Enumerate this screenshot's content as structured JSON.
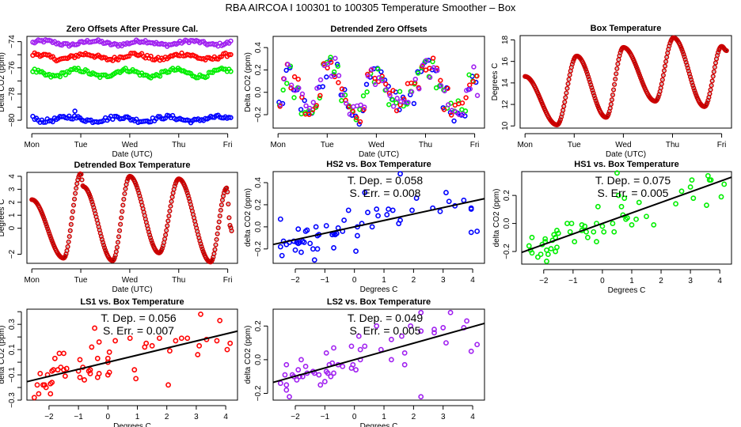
{
  "figure_title": "RBA   AIRCOA I   100301 to 100305   Temperature Smoother – Box",
  "colors": {
    "HS2": "#0000ff",
    "HS1": "#00ee00",
    "LS1": "#ff0000",
    "LS2": "#a020f0",
    "temp_fill": "#cc0000",
    "temp_edge": "#000000",
    "fit": "#000000"
  },
  "chart_data": [
    {
      "id": "zero-offsets",
      "type": "scatter",
      "title": "Zero Offsets After Pressure Cal.",
      "xlabel": "Date (UTC)",
      "ylabel": "Delta CO2 (ppm)",
      "xticks": [
        "Mon",
        "Tue",
        "Wed",
        "Thu",
        "Fri"
      ],
      "xlim": [
        -0.1,
        4.2
      ],
      "ylim": [
        -80.6,
        -73.6
      ],
      "yticks": [
        -80,
        -78,
        -76,
        -74
      ],
      "yticks_minor": [
        -79,
        -77,
        -75
      ],
      "series": [
        {
          "name": "LS2",
          "color": "#a020f0",
          "base": -74.1,
          "amp": 0.15,
          "noise": 0.12
        },
        {
          "name": "LS1",
          "color": "#ff0000",
          "base": -75.15,
          "amp": 0.2,
          "noise": 0.15
        },
        {
          "name": "HS1",
          "color": "#00ee00",
          "base": -76.4,
          "amp": 0.25,
          "noise": 0.15
        },
        {
          "name": "HS2",
          "color": "#0000ff",
          "base": -79.9,
          "amp": 0.15,
          "noise": 0.15
        }
      ]
    },
    {
      "id": "detrended-zero-offsets",
      "type": "scatter",
      "title": "Detrended Zero Offsets",
      "xlabel": "Date (UTC)",
      "ylabel": "Delta CO2 (ppm)",
      "xticks": [
        "Mon",
        "Tue",
        "Wed",
        "Thu",
        "Fri"
      ],
      "xlim": [
        -0.1,
        4.2
      ],
      "ylim": [
        -0.32,
        0.5
      ],
      "yticks": [
        -0.2,
        0.0,
        0.2,
        0.4
      ],
      "series": [
        {
          "name": "HS2",
          "color": "#0000ff"
        },
        {
          "name": "HS1",
          "color": "#00ee00"
        },
        {
          "name": "LS1",
          "color": "#ff0000"
        },
        {
          "name": "LS2",
          "color": "#a020f0"
        }
      ]
    },
    {
      "id": "box-temperature",
      "type": "scatter",
      "title": "Box Temperature",
      "xlabel": "Date (UTC)",
      "ylabel": "Degrees C",
      "xticks": [
        "Mon",
        "Tue",
        "Wed",
        "Thu",
        "Fri"
      ],
      "xlim": [
        -0.1,
        4.2
      ],
      "ylim": [
        9.8,
        18.4
      ],
      "yticks": [
        10,
        12,
        14,
        16,
        18
      ],
      "keypoints": [
        [
          0.0,
          14.6
        ],
        [
          0.65,
          10.1
        ],
        [
          1.05,
          16.5
        ],
        [
          1.65,
          10.8
        ],
        [
          2.0,
          17.3
        ],
        [
          2.65,
          12.3
        ],
        [
          3.02,
          18.2
        ],
        [
          3.65,
          11.8
        ],
        [
          4.0,
          17.4
        ],
        [
          4.1,
          17.0
        ]
      ]
    },
    {
      "id": "detrended-box-temperature",
      "type": "scatter",
      "title": "Detrended Box Temperature",
      "xlabel": "Date (UTC)",
      "ylabel": "Degrees C",
      "xticks": [
        "Mon",
        "Tue",
        "Wed",
        "Thu",
        "Fri"
      ],
      "xlim": [
        -0.1,
        4.2
      ],
      "ylim": [
        -2.7,
        4.3
      ],
      "yticks": [
        -2,
        0,
        1,
        2,
        3,
        4
      ],
      "ytick_labels": [
        "-2",
        "0",
        "1",
        "2",
        "3",
        "4"
      ],
      "keypoints": [
        [
          0.0,
          2.2
        ],
        [
          0.65,
          -2.3
        ],
        [
          1.0,
          4.2
        ],
        [
          1.05,
          3.2
        ],
        [
          1.65,
          -2.5
        ],
        [
          2.0,
          4.0
        ],
        [
          2.6,
          -1.9
        ],
        [
          3.0,
          3.8
        ],
        [
          3.65,
          -2.6
        ],
        [
          3.98,
          3.1
        ],
        [
          4.05,
          0.2
        ],
        [
          4.08,
          -0.2
        ]
      ]
    },
    {
      "id": "hs2-vs-box",
      "type": "scatter",
      "title": "HS2 vs. Box Temperature",
      "xlabel": "Degrees C",
      "ylabel": "delta CO2 (ppm)",
      "color": "#0000ff",
      "xlim": [
        -2.75,
        4.4
      ],
      "ylim": [
        -0.33,
        0.5
      ],
      "xticks": [
        -2,
        -1,
        0,
        1,
        2,
        3,
        4
      ],
      "yticks": [
        -0.2,
        0.0,
        0.2,
        0.4
      ],
      "fit": {
        "slope": 0.058,
        "intercept": 0.0
      },
      "annotation": [
        "T. Dep. =  0.058",
        "S. Err. =  0.008"
      ],
      "points": [
        [
          -2.5,
          0.07
        ],
        [
          -2.5,
          -0.18
        ],
        [
          -2.45,
          -0.26
        ],
        [
          -2.4,
          -0.13
        ],
        [
          -2.3,
          -0.16
        ],
        [
          -2.2,
          -0.14
        ],
        [
          -2.05,
          -0.13
        ],
        [
          -2.0,
          -0.21
        ],
        [
          -1.95,
          -0.14
        ],
        [
          -1.9,
          -0.15
        ],
        [
          -1.9,
          -0.02
        ],
        [
          -1.85,
          -0.14
        ],
        [
          -1.8,
          -0.23
        ],
        [
          -1.75,
          -0.13
        ],
        [
          -1.7,
          -0.14
        ],
        [
          -1.65,
          -0.04
        ],
        [
          -1.6,
          -0.03
        ],
        [
          -1.5,
          -0.15
        ],
        [
          -1.4,
          -0.2
        ],
        [
          -1.35,
          -0.3
        ],
        [
          -1.3,
          0.0
        ],
        [
          -1.25,
          -0.08
        ],
        [
          -1.25,
          -0.2
        ],
        [
          -1.2,
          -0.07
        ],
        [
          -0.95,
          0.01
        ],
        [
          -0.75,
          -0.07
        ],
        [
          -0.7,
          -0.19
        ],
        [
          -0.7,
          -0.06
        ],
        [
          -0.65,
          -0.07
        ],
        [
          -0.6,
          -0.06
        ],
        [
          -0.55,
          -0.01
        ],
        [
          -0.4,
          -0.04
        ],
        [
          -0.35,
          0.06
        ],
        [
          -0.2,
          0.15
        ],
        [
          0.05,
          -0.22
        ],
        [
          0.1,
          0.0
        ],
        [
          0.1,
          -0.08
        ],
        [
          0.25,
          0.03
        ],
        [
          0.35,
          0.31
        ],
        [
          0.45,
          0.13
        ],
        [
          0.6,
          0.0
        ],
        [
          0.75,
          0.16
        ],
        [
          0.8,
          0.1
        ],
        [
          1.1,
          0.11
        ],
        [
          1.15,
          0.16
        ],
        [
          1.3,
          0.15
        ],
        [
          1.5,
          0.03
        ],
        [
          1.55,
          0.48
        ],
        [
          1.55,
          0.06
        ],
        [
          1.95,
          0.15
        ],
        [
          2.1,
          0.26
        ],
        [
          2.65,
          0.17
        ],
        [
          2.9,
          0.14
        ],
        [
          3.1,
          0.31
        ],
        [
          3.2,
          0.23
        ],
        [
          3.4,
          0.19
        ],
        [
          3.7,
          0.24
        ],
        [
          3.95,
          0.16
        ],
        [
          3.95,
          -0.05
        ],
        [
          3.95,
          0.17
        ],
        [
          4.15,
          -0.04
        ]
      ]
    },
    {
      "id": "hs1-vs-box",
      "type": "scatter",
      "title": "HS1 vs. Box Temperature",
      "xlabel": "Degrees C",
      "ylabel": "delta CO2 (ppm)",
      "color": "#00ee00",
      "xlim": [
        -2.75,
        4.4
      ],
      "ylim": [
        -0.29,
        0.37
      ],
      "xticks": [
        -2,
        -1,
        0,
        1,
        2,
        3,
        4
      ],
      "yticks": [
        -0.2,
        0.0,
        0.2
      ],
      "fit": {
        "slope": 0.075,
        "intercept": 0.0
      },
      "annotation": [
        "T. Dep. =  0.075",
        "S. Err. =  0.005"
      ],
      "points": [
        [
          -2.5,
          -0.16
        ],
        [
          -2.45,
          -0.19
        ],
        [
          -2.4,
          -0.21
        ],
        [
          -2.4,
          -0.1
        ],
        [
          -2.2,
          -0.24
        ],
        [
          -2.1,
          -0.22
        ],
        [
          -2.05,
          -0.15
        ],
        [
          -1.95,
          -0.11
        ],
        [
          -1.95,
          -0.13
        ],
        [
          -1.9,
          -0.19
        ],
        [
          -1.9,
          -0.27
        ],
        [
          -1.85,
          -0.22
        ],
        [
          -1.75,
          -0.18
        ],
        [
          -1.7,
          -0.12
        ],
        [
          -1.65,
          -0.08
        ],
        [
          -1.6,
          -0.1
        ],
        [
          -1.6,
          -0.2
        ],
        [
          -1.55,
          -0.05
        ],
        [
          -1.55,
          -0.17
        ],
        [
          -1.5,
          -0.07
        ],
        [
          -1.2,
          0.0
        ],
        [
          -1.1,
          -0.06
        ],
        [
          -1.05,
          0.0
        ],
        [
          -0.95,
          -0.13
        ],
        [
          -0.7,
          -0.01
        ],
        [
          -0.7,
          -0.05
        ],
        [
          -0.6,
          -0.02
        ],
        [
          -0.55,
          -0.06
        ],
        [
          -0.5,
          -0.1
        ],
        [
          -0.3,
          -0.06
        ],
        [
          -0.2,
          -0.13
        ],
        [
          -0.2,
          0.0
        ],
        [
          -0.15,
          0.12
        ],
        [
          0.0,
          -0.02
        ],
        [
          0.05,
          -0.06
        ],
        [
          0.35,
          0.0
        ],
        [
          0.4,
          -0.06
        ],
        [
          0.5,
          0.36
        ],
        [
          0.55,
          0.2
        ],
        [
          0.65,
          0.12
        ],
        [
          0.7,
          0.06
        ],
        [
          0.75,
          0.18
        ],
        [
          0.8,
          0.03
        ],
        [
          0.85,
          0.04
        ],
        [
          1.0,
          -0.01
        ],
        [
          1.15,
          0.03
        ],
        [
          1.25,
          0.15
        ],
        [
          1.5,
          0.05
        ],
        [
          1.75,
          -0.01
        ],
        [
          2.5,
          0.14
        ],
        [
          2.7,
          0.23
        ],
        [
          3.0,
          0.26
        ],
        [
          3.05,
          0.31
        ],
        [
          3.1,
          0.18
        ],
        [
          3.55,
          0.13
        ],
        [
          3.6,
          0.34
        ],
        [
          3.65,
          0.31
        ],
        [
          3.7,
          0.31
        ],
        [
          4.05,
          0.19
        ],
        [
          4.15,
          0.28
        ]
      ]
    },
    {
      "id": "ls1-vs-box",
      "type": "scatter",
      "title": "LS1 vs. Box Temperature",
      "xlabel": "Degrees C",
      "ylabel": "delta CO2 (ppm)",
      "color": "#ff0000",
      "xlim": [
        -2.75,
        4.4
      ],
      "ylim": [
        -0.3,
        0.42
      ],
      "xticks": [
        -2,
        -1,
        0,
        1,
        2,
        3,
        4
      ],
      "yticks": [
        -0.3,
        -0.1,
        0.1,
        0.3
      ],
      "yticks_minor": [
        -0.2,
        0.0,
        0.2,
        0.4
      ],
      "fit": {
        "slope": 0.056,
        "intercept": 0.0
      },
      "annotation": [
        "T. Dep. =  0.056",
        "S. Err. =  0.007"
      ],
      "points": [
        [
          -2.5,
          -0.28
        ],
        [
          -2.4,
          -0.18
        ],
        [
          -2.35,
          -0.25
        ],
        [
          -2.3,
          -0.09
        ],
        [
          -2.2,
          -0.18
        ],
        [
          -2.15,
          -0.18
        ],
        [
          -2.1,
          -0.2
        ],
        [
          -2.05,
          -0.1
        ],
        [
          -1.95,
          -0.17
        ],
        [
          -1.95,
          -0.25
        ],
        [
          -1.9,
          -0.16
        ],
        [
          -1.9,
          -0.07
        ],
        [
          -1.85,
          -0.06
        ],
        [
          -1.8,
          0.03
        ],
        [
          -1.7,
          -0.06
        ],
        [
          -1.65,
          0.07
        ],
        [
          -1.6,
          -0.04
        ],
        [
          -1.5,
          -0.06
        ],
        [
          -1.5,
          0.07
        ],
        [
          -1.45,
          -0.11
        ],
        [
          -1.4,
          -0.05
        ],
        [
          -1.0,
          -0.07
        ],
        [
          -0.95,
          0.02
        ],
        [
          -0.95,
          -0.12
        ],
        [
          -0.85,
          -0.04
        ],
        [
          -0.8,
          -0.14
        ],
        [
          -0.65,
          -0.07
        ],
        [
          -0.6,
          -0.09
        ],
        [
          -0.6,
          -0.06
        ],
        [
          -0.55,
          0.12
        ],
        [
          -0.45,
          0.27
        ],
        [
          -0.35,
          -0.12
        ],
        [
          -0.35,
          0.03
        ],
        [
          -0.3,
          -0.09
        ],
        [
          -0.3,
          0.16
        ],
        [
          0.0,
          0.0
        ],
        [
          0.0,
          -0.1
        ],
        [
          0.0,
          0.03
        ],
        [
          0.05,
          0.08
        ],
        [
          0.05,
          -0.08
        ],
        [
          0.25,
          0.17
        ],
        [
          0.75,
          0.19
        ],
        [
          0.9,
          -0.06
        ],
        [
          0.95,
          -0.13
        ],
        [
          1.25,
          0.12
        ],
        [
          1.3,
          0.15
        ],
        [
          1.5,
          0.13
        ],
        [
          1.75,
          0.19
        ],
        [
          2.05,
          -0.18
        ],
        [
          2.1,
          0.09
        ],
        [
          2.3,
          0.17
        ],
        [
          2.5,
          0.19
        ],
        [
          2.7,
          0.19
        ],
        [
          3.05,
          0.06
        ],
        [
          3.1,
          0.13
        ],
        [
          3.15,
          0.38
        ],
        [
          3.35,
          0.18
        ],
        [
          3.7,
          0.17
        ],
        [
          3.8,
          0.33
        ],
        [
          4.05,
          0.1
        ],
        [
          4.15,
          0.15
        ]
      ]
    },
    {
      "id": "ls2-vs-box",
      "type": "scatter",
      "title": "LS2 vs. Box Temperature",
      "xlabel": "Degrees C",
      "ylabel": "delta CO2 (ppm)",
      "color": "#a020f0",
      "xlim": [
        -2.75,
        4.4
      ],
      "ylim": [
        -0.24,
        0.3
      ],
      "xticks": [
        -2,
        -1,
        0,
        1,
        2,
        3,
        4
      ],
      "yticks": [
        -0.2,
        0.0,
        0.2
      ],
      "fit": {
        "slope": 0.049,
        "intercept": 0.0
      },
      "annotation": [
        "T. Dep. =  0.049",
        "S. Err. =  0.005"
      ],
      "points": [
        [
          -2.5,
          -0.14
        ],
        [
          -2.35,
          -0.09
        ],
        [
          -2.3,
          -0.03
        ],
        [
          -2.3,
          -0.15
        ],
        [
          -2.3,
          -0.18
        ],
        [
          -2.2,
          -0.22
        ],
        [
          -2.1,
          -0.09
        ],
        [
          -2.05,
          -0.1
        ],
        [
          -1.95,
          -0.12
        ],
        [
          -1.9,
          -0.06
        ],
        [
          -1.85,
          -0.1
        ],
        [
          -1.8,
          0.0
        ],
        [
          -1.75,
          -0.1
        ],
        [
          -1.65,
          -0.04
        ],
        [
          -1.6,
          -0.08
        ],
        [
          -1.4,
          -0.07
        ],
        [
          -1.35,
          -0.08
        ],
        [
          -1.2,
          -0.09
        ],
        [
          -1.15,
          -0.15
        ],
        [
          -1.0,
          -0.13
        ],
        [
          -0.95,
          0.04
        ],
        [
          -0.95,
          -0.07
        ],
        [
          -0.9,
          -0.08
        ],
        [
          -0.85,
          -0.03
        ],
        [
          -0.8,
          -0.1
        ],
        [
          -0.75,
          -0.02
        ],
        [
          -0.7,
          -0.08
        ],
        [
          -0.7,
          0.07
        ],
        [
          -0.55,
          -0.03
        ],
        [
          -0.4,
          -0.04
        ],
        [
          -0.1,
          0.08
        ],
        [
          -0.1,
          -0.05
        ],
        [
          -0.05,
          -0.03
        ],
        [
          0.05,
          -0.06
        ],
        [
          0.15,
          0.14
        ],
        [
          0.2,
          0.0
        ],
        [
          0.2,
          0.06
        ],
        [
          0.35,
          0.08
        ],
        [
          0.75,
          0.2
        ],
        [
          0.9,
          0.06
        ],
        [
          1.25,
          0.12
        ],
        [
          1.25,
          0.0
        ],
        [
          1.6,
          0.14
        ],
        [
          1.7,
          -0.03
        ],
        [
          1.7,
          0.04
        ],
        [
          1.9,
          0.2
        ],
        [
          2.25,
          0.28
        ],
        [
          2.25,
          0.17
        ],
        [
          2.25,
          -0.22
        ],
        [
          2.7,
          0.18
        ],
        [
          2.7,
          0.16
        ],
        [
          3.0,
          0.19
        ],
        [
          3.1,
          0.1
        ],
        [
          3.25,
          0.28
        ],
        [
          3.7,
          0.19
        ],
        [
          3.8,
          0.23
        ],
        [
          3.95,
          0.05
        ],
        [
          4.15,
          0.09
        ]
      ]
    }
  ]
}
